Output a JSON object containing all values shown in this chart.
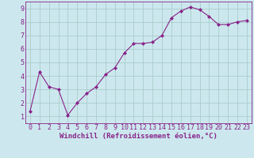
{
  "x": [
    0,
    1,
    2,
    3,
    4,
    5,
    6,
    7,
    8,
    9,
    10,
    11,
    12,
    13,
    14,
    15,
    16,
    17,
    18,
    19,
    20,
    21,
    22,
    23
  ],
  "y": [
    1.4,
    4.3,
    3.2,
    3.0,
    1.1,
    2.0,
    2.7,
    3.2,
    4.1,
    4.6,
    5.7,
    6.4,
    6.4,
    6.5,
    7.0,
    8.3,
    8.8,
    9.1,
    8.9,
    8.4,
    7.8,
    7.8,
    8.0,
    8.1
  ],
  "line_color": "#882288",
  "marker": "D",
  "marker_size": 2.0,
  "bg_color": "#cce8ee",
  "grid_color": "#aacccc",
  "xlabel": "Windchill (Refroidissement éolien,°C)",
  "ylabel_ticks": [
    1,
    2,
    3,
    4,
    5,
    6,
    7,
    8,
    9
  ],
  "xlim": [
    -0.5,
    23.5
  ],
  "ylim": [
    0.5,
    9.5
  ],
  "xlabel_fontsize": 6.5,
  "tick_fontsize": 6.0
}
